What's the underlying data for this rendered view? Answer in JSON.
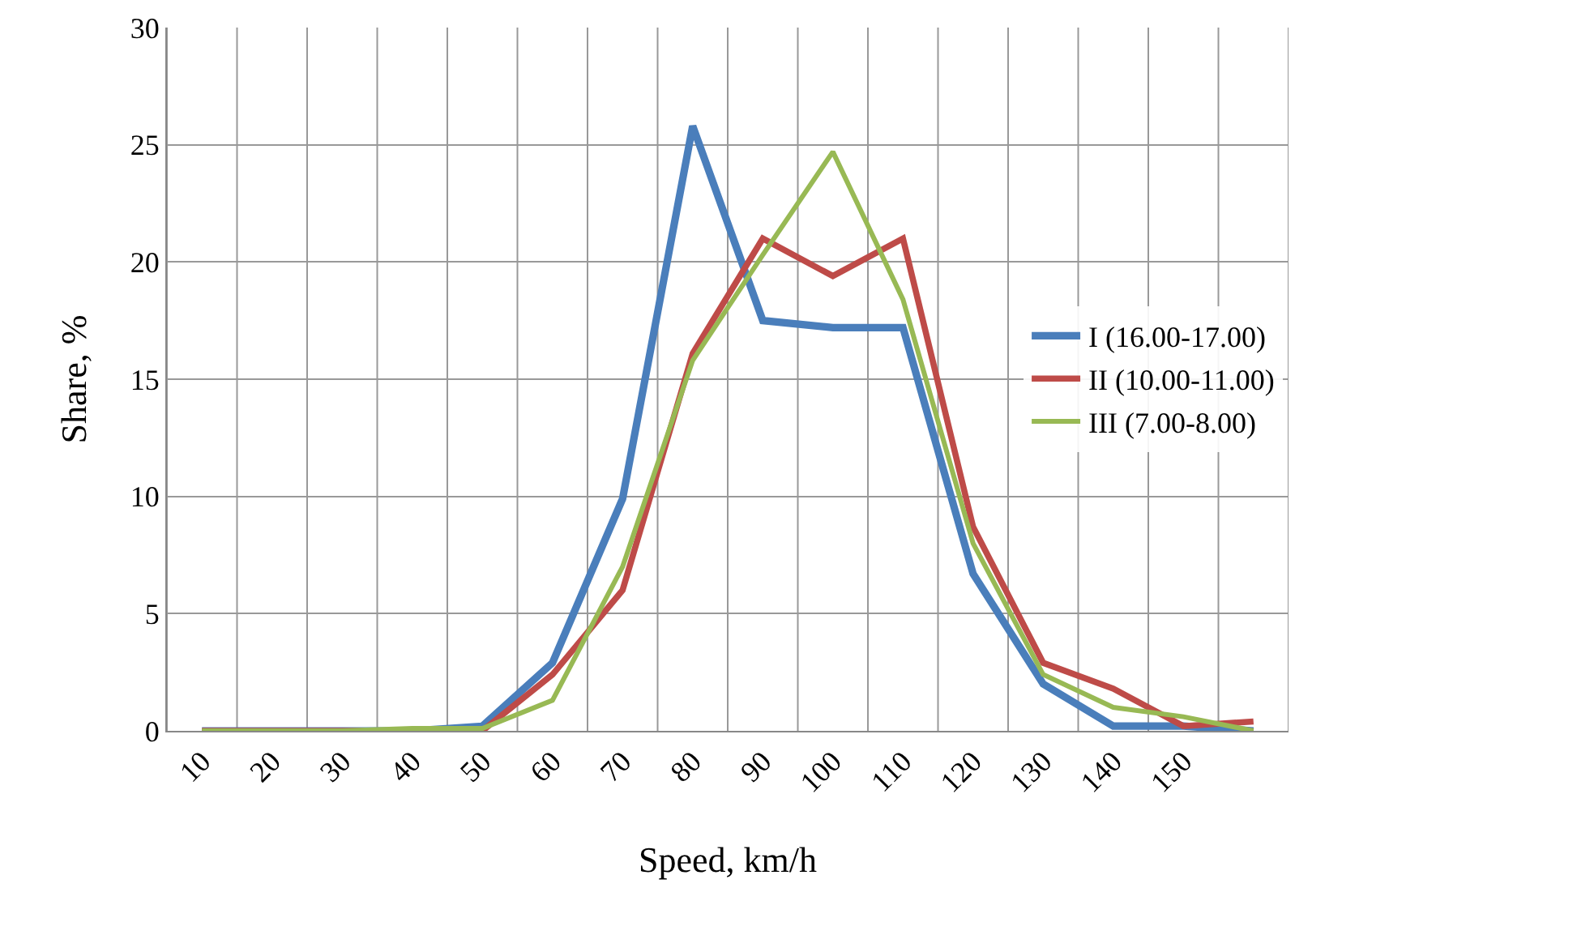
{
  "chart_data": {
    "type": "line",
    "xlabel": "Speed, km/h",
    "ylabel": "Share, %",
    "categories": [
      "10",
      "20",
      "30",
      "40",
      "50",
      "60",
      "70",
      "80",
      "90",
      "100",
      "110",
      "120",
      "130",
      "140",
      "150",
      null
    ],
    "series": [
      {
        "name": "I (16.00-17.00)",
        "color": "#4a7ebb",
        "values": [
          0,
          0,
          0,
          0,
          0.2,
          2.9,
          9.9,
          25.8,
          17.5,
          17.2,
          17.2,
          6.7,
          2.0,
          0.2,
          0.2,
          0
        ]
      },
      {
        "name": "II (10.00-11.00)",
        "color": "#be4b48",
        "values": [
          0,
          0,
          0,
          0,
          0,
          2.4,
          6.0,
          16.1,
          21.0,
          19.4,
          21.0,
          8.7,
          2.9,
          1.8,
          0.2,
          0.4
        ]
      },
      {
        "name": "III (7.00-8.00)",
        "color": "#98b954",
        "values": [
          0,
          0,
          0,
          0.1,
          0.1,
          1.3,
          7.0,
          15.8,
          20.3,
          24.7,
          18.4,
          8.0,
          2.4,
          1.0,
          0.6,
          0
        ]
      }
    ],
    "ylim": [
      0,
      30
    ],
    "yticks": [
      0,
      5,
      10,
      15,
      20,
      25,
      30
    ],
    "grid": true,
    "legend": "right",
    "marker": "none",
    "line_style": "solid"
  }
}
